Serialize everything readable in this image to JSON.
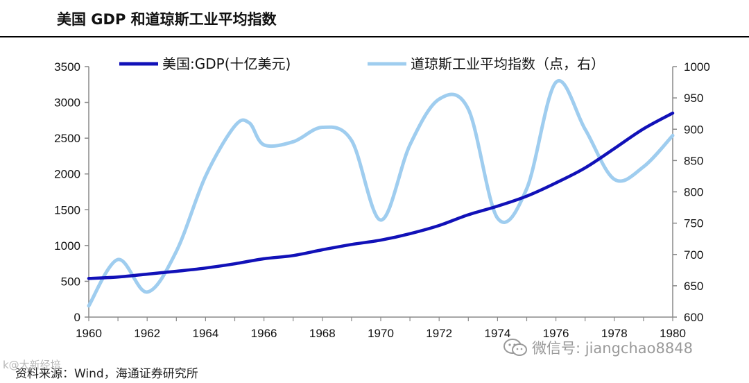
{
  "header": {
    "title": "美国 GDP 和道琼斯工业平均指数"
  },
  "footer": {
    "source": "资料来源：Wind，海通证券研究所",
    "watermark": "微信号: jiangchao8848",
    "watermark_left": "k@大新经培"
  },
  "chart_data": {
    "type": "line",
    "x_ticks": [
      "1960",
      "1962",
      "1964",
      "1966",
      "1968",
      "1970",
      "1972",
      "1974",
      "1976",
      "1978",
      "1980"
    ],
    "xlim": [
      1960,
      1980
    ],
    "y_left": {
      "lim": [
        0,
        3500
      ],
      "ticks": [
        "0",
        "500",
        "1000",
        "1500",
        "2000",
        "2500",
        "3000",
        "3500"
      ]
    },
    "y_right": {
      "lim": [
        600,
        1000
      ],
      "ticks": [
        "600",
        "650",
        "700",
        "750",
        "800",
        "850",
        "900",
        "950",
        "1000"
      ]
    },
    "legend_position": "top",
    "series": [
      {
        "name": "美国:GDP(十亿美元)",
        "axis": "left",
        "color": "#1111b8",
        "x": [
          1960,
          1961,
          1962,
          1963,
          1964,
          1965,
          1966,
          1967,
          1968,
          1969,
          1970,
          1971,
          1972,
          1973,
          1974,
          1975,
          1976,
          1977,
          1978,
          1979,
          1980
        ],
        "values": [
          540,
          560,
          600,
          640,
          685,
          745,
          815,
          860,
          940,
          1015,
          1075,
          1165,
          1280,
          1430,
          1550,
          1690,
          1875,
          2085,
          2355,
          2630,
          2850
        ]
      },
      {
        "name": "道琼斯工业平均指数（点，右）",
        "axis": "right",
        "color": "#9fcdef",
        "x": [
          1960,
          1961,
          1962,
          1963,
          1964,
          1965,
          1965.5,
          1966,
          1967,
          1968,
          1969,
          1970,
          1971,
          1972,
          1973,
          1974,
          1975,
          1976,
          1977,
          1978,
          1979,
          1980
        ],
        "values": [
          618,
          692,
          640,
          705,
          825,
          905,
          910,
          875,
          880,
          903,
          882,
          755,
          875,
          948,
          932,
          758,
          805,
          975,
          900,
          820,
          840,
          890
        ]
      }
    ]
  }
}
